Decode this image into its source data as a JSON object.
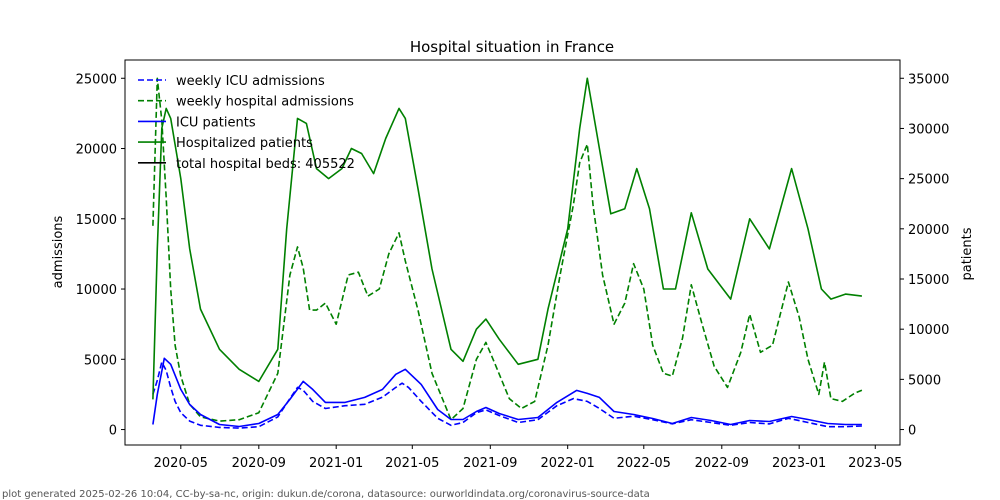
{
  "chart_data": {
    "type": "line",
    "title": "Hospital situation in France",
    "xlabel": "",
    "ylabel": "admissions",
    "y2label": "patients",
    "ylim": [
      -1100,
      26300
    ],
    "y2lim": [
      -1540,
      36820
    ],
    "yticks": [
      0,
      5000,
      10000,
      15000,
      20000,
      25000
    ],
    "y2ticks": [
      0,
      5000,
      10000,
      15000,
      20000,
      25000,
      30000,
      35000
    ],
    "xlim": [
      "2020-02-03",
      "2023-06-09"
    ],
    "xticks": [
      {
        "date": "2020-05-01",
        "label": "2020-05"
      },
      {
        "date": "2020-09-01",
        "label": "2020-09"
      },
      {
        "date": "2021-01-01",
        "label": "2021-01"
      },
      {
        "date": "2021-05-01",
        "label": "2021-05"
      },
      {
        "date": "2021-09-01",
        "label": "2021-09"
      },
      {
        "date": "2022-01-01",
        "label": "2022-01"
      },
      {
        "date": "2022-05-01",
        "label": "2022-05"
      },
      {
        "date": "2022-09-01",
        "label": "2022-09"
      },
      {
        "date": "2023-01-01",
        "label": "2023-01"
      },
      {
        "date": "2023-05-01",
        "label": "2023-05"
      }
    ],
    "legend": {
      "position": "top-left"
    },
    "series": [
      {
        "name": "weekly ICU admissions",
        "axis": "left",
        "style": "dashed",
        "color": "#0000ff",
        "points": [
          [
            "2020-03-18",
            2500
          ],
          [
            "2020-03-25",
            3500
          ],
          [
            "2020-04-01",
            4800
          ],
          [
            "2020-04-08",
            4200
          ],
          [
            "2020-04-15",
            3000
          ],
          [
            "2020-04-22",
            2000
          ],
          [
            "2020-05-01",
            1200
          ],
          [
            "2020-05-15",
            600
          ],
          [
            "2020-06-01",
            300
          ],
          [
            "2020-07-01",
            150
          ],
          [
            "2020-08-01",
            100
          ],
          [
            "2020-09-01",
            200
          ],
          [
            "2020-10-01",
            900
          ],
          [
            "2020-10-20",
            2200
          ],
          [
            "2020-11-01",
            3000
          ],
          [
            "2020-11-10",
            2800
          ],
          [
            "2020-11-25",
            2000
          ],
          [
            "2020-12-15",
            1500
          ],
          [
            "2021-01-15",
            1700
          ],
          [
            "2021-02-15",
            1800
          ],
          [
            "2021-03-15",
            2300
          ],
          [
            "2021-04-05",
            3000
          ],
          [
            "2021-04-15",
            3300
          ],
          [
            "2021-04-25",
            3000
          ],
          [
            "2021-05-15",
            2000
          ],
          [
            "2021-06-10",
            800
          ],
          [
            "2021-07-01",
            300
          ],
          [
            "2021-07-20",
            500
          ],
          [
            "2021-08-10",
            1200
          ],
          [
            "2021-08-25",
            1400
          ],
          [
            "2021-09-15",
            1000
          ],
          [
            "2021-10-15",
            500
          ],
          [
            "2021-11-15",
            700
          ],
          [
            "2021-12-15",
            1700
          ],
          [
            "2022-01-10",
            2200
          ],
          [
            "2022-02-01",
            2000
          ],
          [
            "2022-02-20",
            1500
          ],
          [
            "2022-03-15",
            800
          ],
          [
            "2022-04-15",
            950
          ],
          [
            "2022-05-15",
            700
          ],
          [
            "2022-06-15",
            400
          ],
          [
            "2022-07-15",
            700
          ],
          [
            "2022-08-15",
            500
          ],
          [
            "2022-09-15",
            300
          ],
          [
            "2022-10-15",
            500
          ],
          [
            "2022-11-15",
            400
          ],
          [
            "2022-12-15",
            800
          ],
          [
            "2023-01-15",
            500
          ],
          [
            "2023-02-15",
            200
          ],
          [
            "2023-03-15",
            200
          ],
          [
            "2023-04-10",
            250
          ]
        ]
      },
      {
        "name": "weekly hospital admissions",
        "axis": "left",
        "style": "dashed",
        "color": "#008000",
        "points": [
          [
            "2020-03-18",
            14500
          ],
          [
            "2020-03-25",
            25000
          ],
          [
            "2020-04-01",
            22000
          ],
          [
            "2020-04-08",
            16500
          ],
          [
            "2020-04-15",
            10000
          ],
          [
            "2020-04-22",
            6000
          ],
          [
            "2020-05-01",
            3800
          ],
          [
            "2020-05-15",
            1800
          ],
          [
            "2020-06-01",
            900
          ],
          [
            "2020-07-01",
            600
          ],
          [
            "2020-08-01",
            700
          ],
          [
            "2020-09-01",
            1200
          ],
          [
            "2020-10-01",
            4000
          ],
          [
            "2020-10-20",
            11000
          ],
          [
            "2020-11-01",
            13000
          ],
          [
            "2020-11-10",
            11500
          ],
          [
            "2020-11-20",
            8500
          ],
          [
            "2020-12-01",
            8500
          ],
          [
            "2020-12-15",
            9000
          ],
          [
            "2021-01-01",
            7500
          ],
          [
            "2021-01-20",
            11000
          ],
          [
            "2021-02-05",
            11200
          ],
          [
            "2021-02-20",
            9500
          ],
          [
            "2021-03-10",
            10000
          ],
          [
            "2021-03-25",
            12500
          ],
          [
            "2021-04-10",
            14000
          ],
          [
            "2021-04-20",
            12000
          ],
          [
            "2021-05-10",
            8500
          ],
          [
            "2021-06-01",
            4000
          ],
          [
            "2021-07-01",
            700
          ],
          [
            "2021-07-20",
            1500
          ],
          [
            "2021-08-10",
            5000
          ],
          [
            "2021-08-25",
            6200
          ],
          [
            "2021-09-10",
            4500
          ],
          [
            "2021-10-01",
            2200
          ],
          [
            "2021-10-20",
            1500
          ],
          [
            "2021-11-10",
            2000
          ],
          [
            "2021-12-01",
            6000
          ],
          [
            "2021-12-20",
            11000
          ],
          [
            "2022-01-10",
            16000
          ],
          [
            "2022-01-20",
            19000
          ],
          [
            "2022-02-01",
            20300
          ],
          [
            "2022-02-10",
            16000
          ],
          [
            "2022-02-25",
            11000
          ],
          [
            "2022-03-15",
            7500
          ],
          [
            "2022-04-01",
            9000
          ],
          [
            "2022-04-15",
            11800
          ],
          [
            "2022-05-01",
            10000
          ],
          [
            "2022-05-15",
            6000
          ],
          [
            "2022-06-01",
            4000
          ],
          [
            "2022-06-15",
            3800
          ],
          [
            "2022-07-01",
            6500
          ],
          [
            "2022-07-15",
            10300
          ],
          [
            "2022-08-01",
            7500
          ],
          [
            "2022-08-20",
            4500
          ],
          [
            "2022-09-10",
            3000
          ],
          [
            "2022-10-01",
            5500
          ],
          [
            "2022-10-15",
            8200
          ],
          [
            "2022-11-01",
            5500
          ],
          [
            "2022-11-20",
            6000
          ],
          [
            "2022-12-15",
            10500
          ],
          [
            "2023-01-01",
            8000
          ],
          [
            "2023-01-15",
            5000
          ],
          [
            "2023-02-01",
            2500
          ],
          [
            "2023-02-10",
            4800
          ],
          [
            "2023-02-20",
            2200
          ],
          [
            "2023-03-10",
            2000
          ],
          [
            "2023-03-30",
            2600
          ],
          [
            "2023-04-10",
            2800
          ]
        ]
      },
      {
        "name": "ICU patients",
        "axis": "right",
        "style": "solid",
        "color": "#0000ff",
        "points": [
          [
            "2020-03-18",
            500
          ],
          [
            "2020-03-25",
            3500
          ],
          [
            "2020-04-05",
            7100
          ],
          [
            "2020-04-15",
            6500
          ],
          [
            "2020-05-01",
            4000
          ],
          [
            "2020-05-15",
            2500
          ],
          [
            "2020-06-01",
            1500
          ],
          [
            "2020-07-01",
            500
          ],
          [
            "2020-08-01",
            300
          ],
          [
            "2020-09-01",
            600
          ],
          [
            "2020-10-01",
            1500
          ],
          [
            "2020-10-20",
            3000
          ],
          [
            "2020-11-10",
            4800
          ],
          [
            "2020-11-25",
            4000
          ],
          [
            "2020-12-15",
            2700
          ],
          [
            "2021-01-15",
            2700
          ],
          [
            "2021-02-15",
            3200
          ],
          [
            "2021-03-15",
            4000
          ],
          [
            "2021-04-05",
            5500
          ],
          [
            "2021-04-20",
            6000
          ],
          [
            "2021-05-15",
            4500
          ],
          [
            "2021-06-10",
            2000
          ],
          [
            "2021-07-01",
            1000
          ],
          [
            "2021-07-20",
            1000
          ],
          [
            "2021-08-10",
            1800
          ],
          [
            "2021-08-25",
            2200
          ],
          [
            "2021-09-15",
            1600
          ],
          [
            "2021-10-15",
            1000
          ],
          [
            "2021-11-15",
            1200
          ],
          [
            "2021-12-15",
            2700
          ],
          [
            "2022-01-15",
            3900
          ],
          [
            "2022-02-01",
            3600
          ],
          [
            "2022-02-20",
            3200
          ],
          [
            "2022-03-15",
            1800
          ],
          [
            "2022-04-15",
            1500
          ],
          [
            "2022-05-15",
            1100
          ],
          [
            "2022-06-15",
            600
          ],
          [
            "2022-07-15",
            1200
          ],
          [
            "2022-08-15",
            900
          ],
          [
            "2022-09-15",
            500
          ],
          [
            "2022-10-15",
            900
          ],
          [
            "2022-11-15",
            800
          ],
          [
            "2022-12-20",
            1300
          ],
          [
            "2023-01-15",
            1000
          ],
          [
            "2023-02-15",
            600
          ],
          [
            "2023-03-15",
            500
          ],
          [
            "2023-04-10",
            500
          ]
        ]
      },
      {
        "name": "Hospitalized patients",
        "axis": "right",
        "style": "solid",
        "color": "#008000",
        "points": [
          [
            "2020-03-18",
            3000
          ],
          [
            "2020-03-25",
            18000
          ],
          [
            "2020-04-01",
            30000
          ],
          [
            "2020-04-08",
            32000
          ],
          [
            "2020-04-15",
            31000
          ],
          [
            "2020-05-01",
            25000
          ],
          [
            "2020-05-15",
            18000
          ],
          [
            "2020-06-01",
            12000
          ],
          [
            "2020-07-01",
            8000
          ],
          [
            "2020-08-01",
            6000
          ],
          [
            "2020-09-01",
            4800
          ],
          [
            "2020-10-01",
            8000
          ],
          [
            "2020-10-15",
            20000
          ],
          [
            "2020-11-01",
            31000
          ],
          [
            "2020-11-15",
            30500
          ],
          [
            "2020-12-01",
            26000
          ],
          [
            "2020-12-20",
            25000
          ],
          [
            "2021-01-10",
            26000
          ],
          [
            "2021-01-25",
            28000
          ],
          [
            "2021-02-10",
            27500
          ],
          [
            "2021-03-01",
            25500
          ],
          [
            "2021-03-20",
            29000
          ],
          [
            "2021-04-10",
            32000
          ],
          [
            "2021-04-20",
            31000
          ],
          [
            "2021-05-10",
            24000
          ],
          [
            "2021-06-01",
            16000
          ],
          [
            "2021-07-01",
            8000
          ],
          [
            "2021-07-20",
            6800
          ],
          [
            "2021-08-10",
            10000
          ],
          [
            "2021-08-25",
            11000
          ],
          [
            "2021-09-15",
            9000
          ],
          [
            "2021-10-15",
            6500
          ],
          [
            "2021-11-15",
            7000
          ],
          [
            "2021-12-01",
            12000
          ],
          [
            "2022-01-01",
            20000
          ],
          [
            "2022-01-20",
            30000
          ],
          [
            "2022-02-01",
            35000
          ],
          [
            "2022-02-20",
            28000
          ],
          [
            "2022-03-10",
            21500
          ],
          [
            "2022-04-01",
            22000
          ],
          [
            "2022-04-20",
            26000
          ],
          [
            "2022-05-10",
            22000
          ],
          [
            "2022-06-01",
            14000
          ],
          [
            "2022-06-20",
            14000
          ],
          [
            "2022-07-15",
            21600
          ],
          [
            "2022-08-10",
            16000
          ],
          [
            "2022-09-15",
            13000
          ],
          [
            "2022-10-15",
            21000
          ],
          [
            "2022-11-15",
            18000
          ],
          [
            "2022-12-20",
            26000
          ],
          [
            "2023-01-15",
            20000
          ],
          [
            "2023-02-05",
            14000
          ],
          [
            "2023-02-20",
            13000
          ],
          [
            "2023-03-15",
            13500
          ],
          [
            "2023-04-10",
            13300
          ]
        ]
      },
      {
        "name": "total hospital beds: 405522",
        "axis": "right",
        "style": "solid",
        "color": "#000000",
        "points": []
      }
    ]
  },
  "footer": "plot generated 2025-02-26 10:04, CC-by-sa-nc, origin: dukun.de/corona, datasource: ourworldindata.org/coronavirus-source-data"
}
